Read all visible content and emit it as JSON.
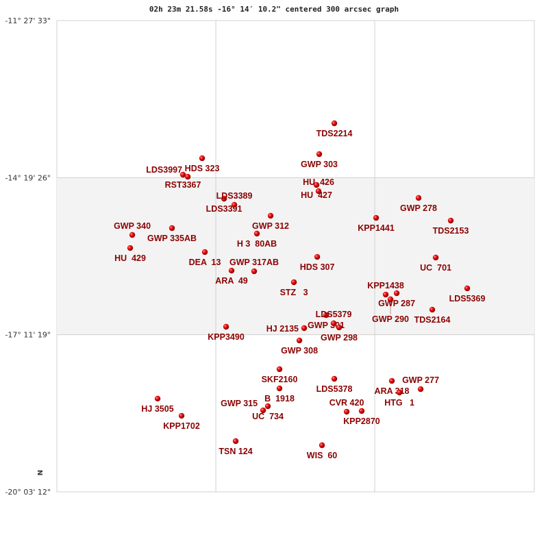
{
  "chart_data": {
    "type": "scatter",
    "title": "02h 23m 21.58s -16° 14′ 10.2\" centered 300 arcsec graph",
    "y_tick_labels": [
      "-11° 27' 33\"",
      "-14° 19' 26\"",
      "-17° 11' 19\"",
      "-20° 03' 12\""
    ],
    "y_ticks_deg": [
      -11.4592,
      -14.3239,
      -17.1886,
      -20.0533
    ],
    "ylim_deg": [
      -20.0533,
      -11.4592
    ],
    "x_offset_range_deg": [
      -4.354,
      4.353
    ],
    "x_grid_offsets_deg": [
      -1.455,
      1.443
    ],
    "orientation_label": "N",
    "grid": true,
    "shaded_band_deg": [
      -17.1886,
      -14.3239
    ],
    "colors": {
      "marker": "#dd0000",
      "label": "#8b0000",
      "band": "#f3f3f3",
      "grid": "#d0d0d0"
    },
    "stars": [
      {
        "name": "TDS2214",
        "x": 0.706,
        "dec": -13.333
      },
      {
        "name": "GWP 303",
        "x": 0.431,
        "dec": -13.895
      },
      {
        "name": "HDS 323",
        "x": -1.705,
        "dec": -13.97
      },
      {
        "name": "RST3367",
        "x": -2.055,
        "dec": -14.27
      },
      {
        "name": "LDS3997",
        "x": -1.967,
        "dec": -14.307
      },
      {
        "name": "HU  427",
        "x": 0.381,
        "dec": -14.457
      },
      {
        "name": "HU  426",
        "x": 0.418,
        "dec": -14.57
      },
      {
        "name": "GWP 278",
        "x": 2.242,
        "dec": -14.694
      },
      {
        "name": "LDS3391",
        "x": -1.305,
        "dec": -14.707
      },
      {
        "name": "LDS3389",
        "x": -1.118,
        "dec": -14.819
      },
      {
        "name": "GWP 312",
        "x": -0.456,
        "dec": -15.019
      },
      {
        "name": "KPP1441",
        "x": 1.468,
        "dec": -15.057
      },
      {
        "name": "TDS2153",
        "x": 2.829,
        "dec": -15.107
      },
      {
        "name": "GWP 335AB",
        "x": -2.255,
        "dec": -15.244
      },
      {
        "name": "H 3  80AB",
        "x": -0.706,
        "dec": -15.344
      },
      {
        "name": "GWP 340",
        "x": -2.979,
        "dec": -15.369
      },
      {
        "name": "HU  429",
        "x": -3.017,
        "dec": -15.607
      },
      {
        "name": "DEA  13",
        "x": -1.655,
        "dec": -15.681
      },
      {
        "name": "HDS 307",
        "x": 0.394,
        "dec": -15.769
      },
      {
        "name": "UC  701",
        "x": 2.555,
        "dec": -15.781
      },
      {
        "name": "ARA  49",
        "x": -1.168,
        "dec": -16.019
      },
      {
        "name": "GWP 317AB",
        "x": -0.756,
        "dec": -16.031
      },
      {
        "name": "STZ   3",
        "x": -0.031,
        "dec": -16.231
      },
      {
        "name": "LDS5369",
        "x": 3.129,
        "dec": -16.343
      },
      {
        "name": "KPP1438",
        "x": 1.643,
        "dec": -16.456
      },
      {
        "name": "GWP 287",
        "x": 1.843,
        "dec": -16.431
      },
      {
        "name": "GWP 290",
        "x": 1.73,
        "dec": -16.543
      },
      {
        "name": "TDS2164",
        "x": 2.492,
        "dec": -16.731
      },
      {
        "name": "GWP 301",
        "x": 0.556,
        "dec": -16.831
      },
      {
        "name": "LDS5379",
        "x": 0.693,
        "dec": -16.98
      },
      {
        "name": "GWP 298",
        "x": 0.793,
        "dec": -17.055
      },
      {
        "name": "HJ 2135",
        "x": 0.156,
        "dec": -17.068
      },
      {
        "name": "GWP 308",
        "x": 0.069,
        "dec": -17.293
      },
      {
        "name": "KPP3490",
        "x": -1.268,
        "dec": -17.043
      },
      {
        "name": "SKF2160",
        "x": -0.294,
        "dec": -17.817
      },
      {
        "name": "LDS5378",
        "x": 0.706,
        "dec": -17.992
      },
      {
        "name": "ARA 318",
        "x": 1.755,
        "dec": -18.03
      },
      {
        "name": "GWP 277",
        "x": 2.28,
        "dec": -18.18
      },
      {
        "name": "HTG   1",
        "x": 1.893,
        "dec": -18.242
      },
      {
        "name": "B  1918",
        "x": -0.294,
        "dec": -18.167
      },
      {
        "name": "HJ 3505",
        "x": -2.517,
        "dec": -18.354
      },
      {
        "name": "UC  734",
        "x": -0.506,
        "dec": -18.492
      },
      {
        "name": "GWP 315",
        "x": -0.593,
        "dec": -18.567
      },
      {
        "name": "CVR 420",
        "x": 0.931,
        "dec": -18.592
      },
      {
        "name": "KPP2870",
        "x": 1.205,
        "dec": -18.579
      },
      {
        "name": "KPP1702",
        "x": -2.08,
        "dec": -18.666
      },
      {
        "name": "TSN 124",
        "x": -1.093,
        "dec": -19.129
      },
      {
        "name": "WIS  60",
        "x": 0.481,
        "dec": -19.204
      }
    ]
  }
}
